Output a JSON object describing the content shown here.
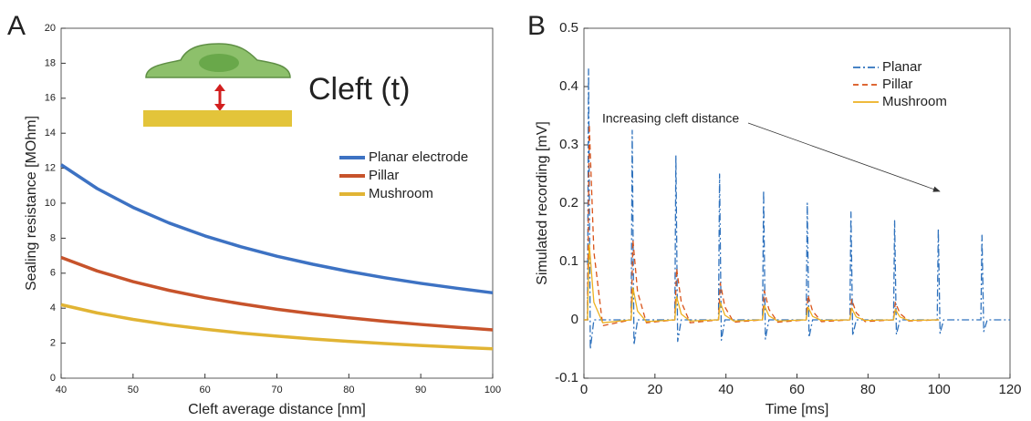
{
  "chart_data": [
    {
      "type": "line",
      "panel_label": "A",
      "annotation": "Cleft (t)",
      "xlabel": "Cleft average distance [nm]",
      "ylabel": "Sealing resistance [MOhm]",
      "x": [
        40,
        45,
        50,
        55,
        60,
        65,
        70,
        75,
        80,
        85,
        90,
        95,
        100
      ],
      "series": [
        {
          "name": "Planar electrode",
          "color": "#3d72c3",
          "dash": "solid",
          "values": [
            12.2,
            10.84,
            9.76,
            8.87,
            8.13,
            7.51,
            6.97,
            6.51,
            6.1,
            5.74,
            5.42,
            5.14,
            4.88
          ]
        },
        {
          "name": "Pillar",
          "color": "#c7532b",
          "dash": "solid",
          "values": [
            6.9,
            6.13,
            5.52,
            5.02,
            4.6,
            4.25,
            3.94,
            3.68,
            3.45,
            3.25,
            3.07,
            2.91,
            2.76
          ]
        },
        {
          "name": "Mushroom",
          "color": "#e1b434",
          "dash": "solid",
          "values": [
            4.2,
            3.73,
            3.36,
            3.05,
            2.8,
            2.58,
            2.4,
            2.24,
            2.1,
            1.98,
            1.87,
            1.77,
            1.68
          ]
        }
      ],
      "xlim": [
        40,
        100
      ],
      "xticks": [
        40,
        50,
        60,
        70,
        80,
        90,
        100
      ],
      "ylim": [
        0,
        20
      ],
      "yticks": [
        0,
        2,
        4,
        6,
        8,
        10,
        12,
        14,
        16,
        18,
        20
      ]
    },
    {
      "type": "line",
      "panel_label": "B",
      "annotation": "Increasing cleft distance",
      "xlabel": "Time [ms]",
      "ylabel": "Simulated recording [mV]",
      "series": [
        {
          "name": "Planar",
          "color": "#2f72bd",
          "dash": "dashdot",
          "x": [
            0,
            1.0,
            1.3,
            1.8,
            2.8,
            13.3,
            13.6,
            14.1,
            15.1,
            25.6,
            25.9,
            26.4,
            27.4,
            37.9,
            38.2,
            38.7,
            39.7,
            50.3,
            50.6,
            51.1,
            52.1,
            62.6,
            62.9,
            63.4,
            64.4,
            74.9,
            75.2,
            75.7,
            76.7,
            87.2,
            87.5,
            88.0,
            89.0,
            99.5,
            99.8,
            100.3,
            101.3,
            111.8,
            112.1,
            112.6,
            113.6,
            120
          ],
          "values": [
            0,
            0,
            0.43,
            -0.05,
            0,
            0,
            0.325,
            -0.043,
            0,
            0,
            0.282,
            -0.037,
            0,
            0,
            0.25,
            -0.035,
            0,
            0,
            0.222,
            -0.033,
            0,
            0,
            0.2,
            -0.03,
            0,
            0,
            0.185,
            -0.027,
            0,
            0,
            0.17,
            -0.025,
            0,
            0,
            0.156,
            -0.023,
            0,
            0,
            0.145,
            -0.02,
            0,
            0
          ]
        },
        {
          "name": "Pillar",
          "color": "#d95319",
          "dash": "dashed",
          "x": [
            0,
            1.0,
            1.5,
            2.8,
            5.3,
            13.3,
            13.8,
            15.1,
            17.6,
            25.6,
            26.1,
            27.4,
            29.9,
            37.9,
            38.4,
            39.7,
            42.2,
            50.3,
            50.8,
            52.1,
            54.6,
            62.6,
            63.1,
            64.4,
            66.9,
            74.9,
            75.4,
            76.7,
            79.2,
            87.2,
            87.7,
            89.0,
            91.5,
            100
          ],
          "values": [
            0,
            0,
            0.335,
            0.117,
            -0.01,
            0,
            0.137,
            0.048,
            -0.005,
            0,
            0.088,
            0.031,
            -0.005,
            0,
            0.063,
            0.022,
            -0.004,
            0,
            0.05,
            0.018,
            -0.004,
            0,
            0.042,
            0.015,
            -0.003,
            0,
            0.035,
            0.012,
            -0.003,
            0,
            0.03,
            0.011,
            -0.002,
            0
          ]
        },
        {
          "name": "Mushroom",
          "color": "#edb120",
          "dash": "solid",
          "x": [
            0,
            1.0,
            1.5,
            2.8,
            5.3,
            13.3,
            13.8,
            15.1,
            17.6,
            25.6,
            26.1,
            27.4,
            29.9,
            37.9,
            38.4,
            39.7,
            42.2,
            50.3,
            50.8,
            52.1,
            54.6,
            62.6,
            63.1,
            64.4,
            66.9,
            74.9,
            75.4,
            76.7,
            79.2,
            87.2,
            87.7,
            89.0,
            91.5,
            100
          ],
          "values": [
            0,
            0,
            0.13,
            0.03,
            -0.005,
            0,
            0.055,
            0.015,
            -0.003,
            0,
            0.04,
            0.01,
            -0.002,
            0,
            0.03,
            0.008,
            -0.002,
            0,
            0.025,
            0.007,
            -0.002,
            0,
            0.022,
            0.006,
            -0.001,
            0,
            0.02,
            0.005,
            -0.001,
            0,
            0.018,
            0.005,
            -0.001,
            0
          ]
        }
      ],
      "xlim": [
        0,
        120
      ],
      "xticks": [
        0,
        20,
        40,
        60,
        80,
        100,
        120
      ],
      "ylim": [
        -0.1,
        0.5
      ],
      "yticks": [
        -0.1,
        0,
        0.1,
        0.2,
        0.3,
        0.4,
        0.5
      ]
    }
  ]
}
